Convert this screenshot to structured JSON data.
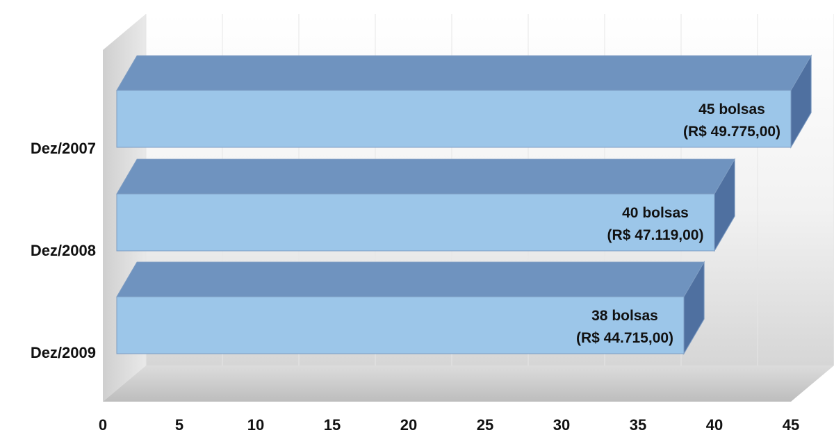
{
  "chart_data": {
    "type": "bar",
    "orientation": "horizontal",
    "style": "3d",
    "categories": [
      "Dez/2007",
      "Dez/2008",
      "Dez/2009"
    ],
    "values": [
      45,
      40,
      38
    ],
    "data_labels": [
      [
        "45 bolsas",
        "(R$ 49.775,00)"
      ],
      [
        "40 bolsas",
        "(R$ 47.119,00)"
      ],
      [
        "38 bolsas",
        "(R$ 44.715,00)"
      ]
    ],
    "xticks": [
      "0",
      "5",
      "10",
      "15",
      "20",
      "25",
      "30",
      "35",
      "40",
      "45"
    ],
    "xlim": [
      0,
      45
    ],
    "grid": true,
    "colors": {
      "bar_front": "#9cc6e9",
      "bar_top": "#6f93bf",
      "bar_side": "#4f70a0",
      "bar_edge": "#7d9cc2",
      "wall": "#e2e2e2",
      "floor": "#c9c9c9",
      "gridline": "#e6e6e6"
    }
  }
}
